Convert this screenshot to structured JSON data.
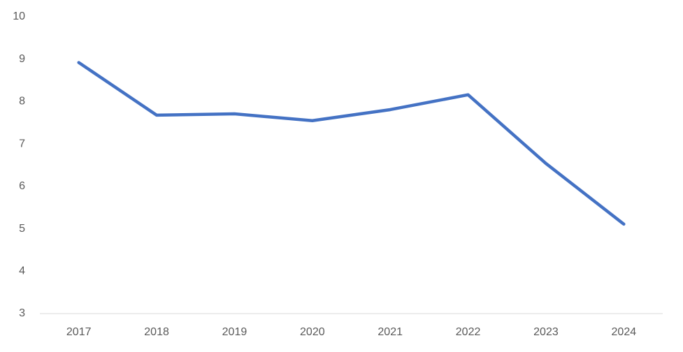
{
  "chart_data": {
    "type": "line",
    "categories": [
      "2017",
      "2018",
      "2019",
      "2020",
      "2021",
      "2022",
      "2023",
      "2024"
    ],
    "series": [
      {
        "color": "#4472c4",
        "values": [
          8.92,
          7.68,
          7.71,
          7.55,
          7.81,
          8.16,
          6.54,
          5.11
        ]
      }
    ],
    "ylim": [
      3,
      10
    ],
    "yticks": [
      3,
      4,
      5,
      6,
      7,
      8,
      9,
      10
    ],
    "grid": false
  }
}
